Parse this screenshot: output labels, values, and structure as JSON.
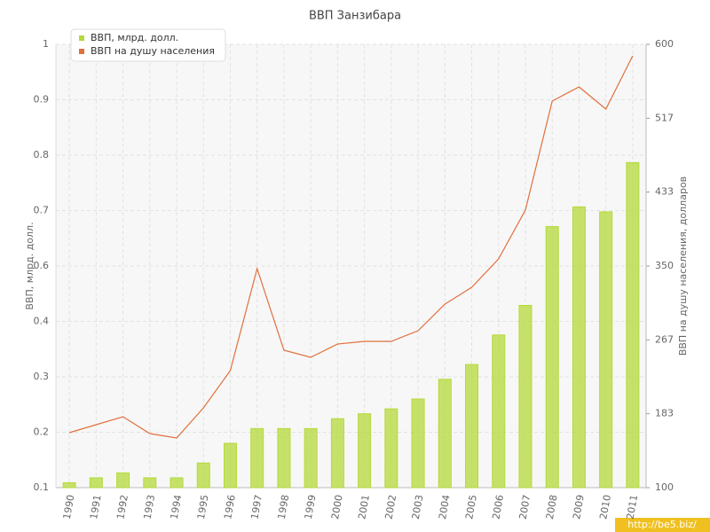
{
  "chart_data": {
    "type": "bar",
    "title": "ВВП Занзибара",
    "y_label": "ВВП, млрд. долл.",
    "y2_label": "ВВП на душу населения, долларов",
    "watermark": "http://be5.biz/",
    "categories": [
      "1990",
      "1991",
      "1992",
      "1993",
      "1994",
      "1995",
      "1996",
      "1997",
      "1998",
      "1999",
      "2000",
      "2001",
      "2002",
      "2003",
      "2004",
      "2005",
      "2006",
      "2007",
      "2008",
      "2009",
      "2010",
      "2011"
    ],
    "series": [
      {
        "name": "ВВП, млрд. долл.",
        "type": "bar",
        "color": "#b5d93a",
        "values": [
          0.11,
          0.12,
          0.13,
          0.12,
          0.12,
          0.15,
          0.19,
          0.22,
          0.22,
          0.22,
          0.24,
          0.25,
          0.26,
          0.28,
          0.32,
          0.35,
          0.41,
          0.47,
          0.63,
          0.67,
          0.66,
          0.76
        ]
      },
      {
        "name": "ВВП на душу населения",
        "type": "line",
        "axis": "y2",
        "color": "#e0703c",
        "values": [
          162,
          171,
          180,
          161,
          156,
          190,
          232,
          347,
          255,
          247,
          262,
          265,
          265,
          277,
          307,
          326,
          358,
          413,
          536,
          552,
          527,
          587
        ]
      }
    ],
    "ylim": [
      0.1,
      1
    ],
    "yticks": [
      0.1,
      {
        "value": 0.2125,
        "label": "0.2"
      },
      {
        "value": 0.325,
        "label": "0.3"
      },
      {
        "value": 0.4375,
        "label": "0.4"
      },
      {
        "value": 0.55,
        "label": "0.6"
      },
      {
        "value": 0.6625,
        "label": "0.7"
      },
      {
        "value": 0.775,
        "label": "0.8"
      },
      {
        "value": 0.8875,
        "label": "0.9"
      },
      1
    ],
    "y2lim": [
      100,
      600
    ],
    "y2ticks": [
      100,
      {
        "value": 183.33,
        "label": "183"
      },
      {
        "value": 266.67,
        "label": "267"
      },
      350,
      {
        "value": 433.33,
        "label": "433"
      },
      {
        "value": 516.67,
        "label": "517"
      },
      600
    ],
    "grid": true,
    "legend": "top-left"
  }
}
